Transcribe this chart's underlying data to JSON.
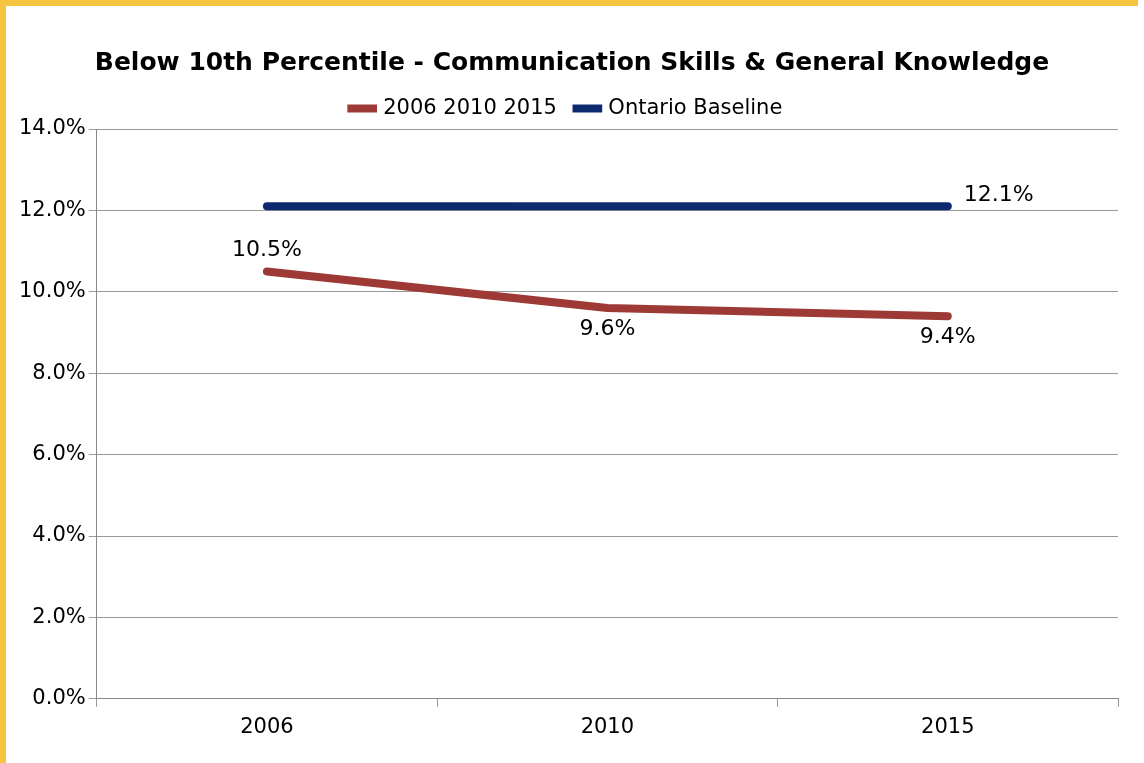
{
  "chart_data": {
    "type": "line",
    "title": "Below 10th Percentile - Communication Skills & General Knowledge",
    "categories": [
      "2006",
      "2010",
      "2015"
    ],
    "series": [
      {
        "name": "2006 2010 2015",
        "color": "#9e3a36",
        "values": [
          10.5,
          9.6,
          9.4
        ],
        "value_labels": [
          "10.5%",
          "9.6%",
          "9.4%"
        ]
      },
      {
        "name": "Ontario Baseline",
        "color": "#0e2a6e",
        "values": [
          12.1,
          12.1,
          12.1
        ],
        "value_labels": [
          null,
          null,
          "12.1%"
        ]
      }
    ],
    "ylim": [
      0,
      14
    ],
    "yticks": [
      {
        "value": 0,
        "label": "0.0%"
      },
      {
        "value": 2,
        "label": "2.0%"
      },
      {
        "value": 4,
        "label": "4.0%"
      },
      {
        "value": 6,
        "label": "6.0%"
      },
      {
        "value": 8,
        "label": "8.0%"
      },
      {
        "value": 10,
        "label": "10.0%"
      },
      {
        "value": 12,
        "label": "12.0%"
      },
      {
        "value": 14,
        "label": "14.0%"
      }
    ],
    "grid": "y",
    "legend": "top",
    "marker": "none",
    "line_style": "solid"
  }
}
